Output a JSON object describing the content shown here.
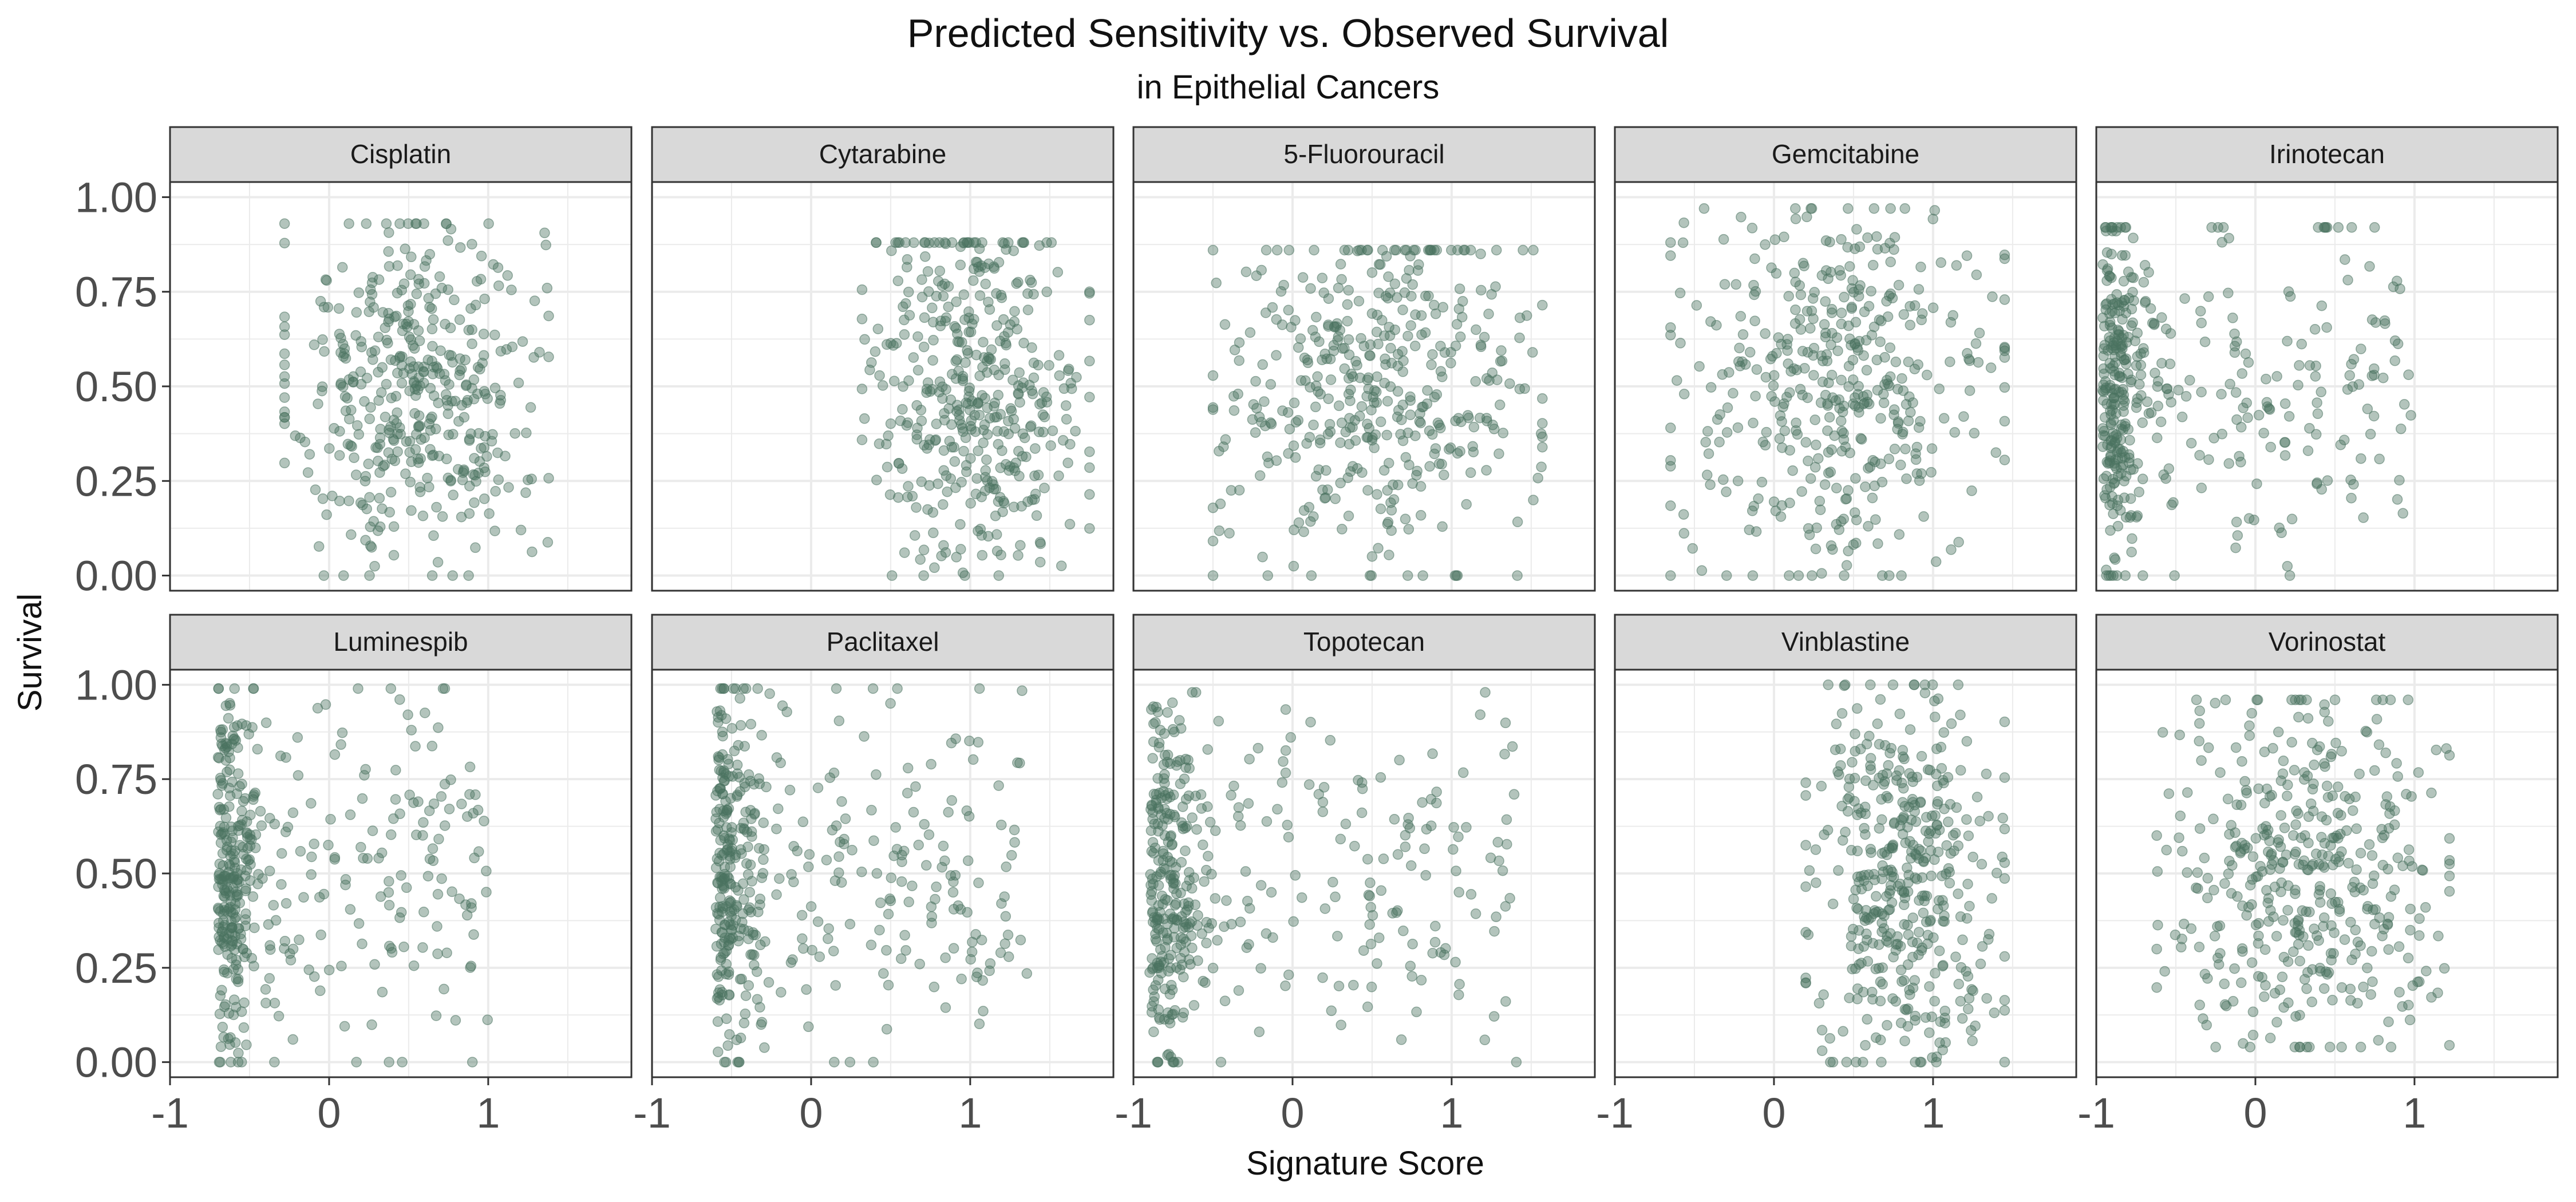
{
  "chart_data": {
    "type": "scatter",
    "title": "Predicted Sensitivity vs. Observed Survival",
    "subtitle": "in Epithelial Cancers",
    "xlabel": "Signature Score",
    "ylabel": "Survival",
    "xlim": [
      -1,
      1.9
    ],
    "ylim": [
      -0.04,
      1.04
    ],
    "x_ticks": [
      -1,
      0,
      1
    ],
    "x_tick_labels": [
      "-1",
      "0",
      "1"
    ],
    "y_ticks": [
      0,
      0.25,
      0.5,
      0.75,
      1
    ],
    "y_tick_labels": [
      "0.00",
      "0.25",
      "0.50",
      "0.75",
      "1.00"
    ],
    "grid": true,
    "point_color": "#4a7260",
    "layout": "facet_wrap 2 rows x 5 columns",
    "facets": [
      {
        "name": "Cisplatin",
        "x_range": [
          -0.28,
          1.38
        ],
        "y_range": [
          0.0,
          0.93
        ]
      },
      {
        "name": "Cytarabine",
        "x_range": [
          0.32,
          1.75
        ],
        "y_range": [
          0.0,
          0.88
        ]
      },
      {
        "name": "5-Fluorouracil",
        "x_range": [
          -0.5,
          1.57
        ],
        "y_range": [
          0.0,
          0.86
        ]
      },
      {
        "name": "Gemcitabine",
        "x_range": [
          -0.65,
          1.45
        ],
        "y_range": [
          0.0,
          0.97
        ]
      },
      {
        "name": "Irinotecan",
        "x_range": [
          -0.96,
          1.0
        ],
        "y_range": [
          0.0,
          0.92
        ]
      },
      {
        "name": "Luminespib",
        "x_range": [
          -0.7,
          1.0
        ],
        "y_range": [
          0.0,
          0.99
        ]
      },
      {
        "name": "Paclitaxel",
        "x_range": [
          -0.6,
          1.36
        ],
        "y_range": [
          0.0,
          0.99
        ]
      },
      {
        "name": "Topotecan",
        "x_range": [
          -0.9,
          1.42
        ],
        "y_range": [
          0.0,
          0.98
        ]
      },
      {
        "name": "Vinblastine",
        "x_range": [
          0.2,
          1.45
        ],
        "y_range": [
          0.0,
          1.0
        ]
      },
      {
        "name": "Vorinostat",
        "x_range": [
          -0.62,
          1.22
        ],
        "y_range": [
          0.04,
          0.96
        ]
      }
    ]
  }
}
